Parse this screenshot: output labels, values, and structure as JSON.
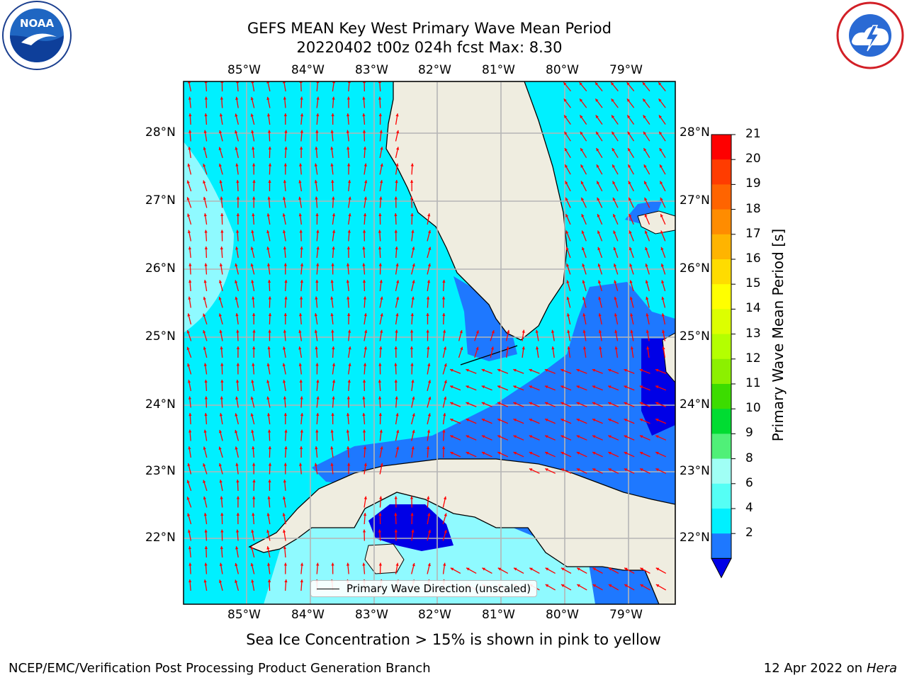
{
  "title": {
    "line1": "GEFS MEAN Key West Primary Wave Mean Period",
    "line2": "20220402 t00z 024h fcst   Max: 8.30"
  },
  "map": {
    "lon_ticks": [
      "85°W",
      "84°W",
      "83°W",
      "82°W",
      "81°W",
      "80°W",
      "79°W"
    ],
    "lat_ticks": [
      "28°N",
      "27°N",
      "26°N",
      "25°N",
      "24°N",
      "23°N",
      "22°N"
    ],
    "legend_label": "Primary Wave Direction (unscaled)",
    "colors": {
      "ocean_light": "#8ffaff",
      "ocean_cyan": "#00f0ff",
      "ocean_blue": "#1e78ff",
      "ocean_deep": "#0000e6",
      "land": "#efede0",
      "arrow": "#ff0000",
      "grid": "#b5b5b5"
    }
  },
  "colorbar": {
    "label": "Primary Wave Mean Period [s]",
    "ticks": [
      "21",
      "20",
      "19",
      "18",
      "17",
      "16",
      "15",
      "14",
      "13",
      "12",
      "11",
      "10",
      "9",
      "8",
      "6",
      "4",
      "2"
    ],
    "colors": [
      "#fe0000",
      "#ff3c00",
      "#ff6400",
      "#ff8c00",
      "#ffb400",
      "#ffdc00",
      "#ffff00",
      "#dcff00",
      "#b4ff00",
      "#8cf000",
      "#3cdc00",
      "#00dc32",
      "#50f078",
      "#a0fff5",
      "#55fff5",
      "#00f0ff",
      "#1e78ff"
    ],
    "extend_color": "#0000e6"
  },
  "notes": {
    "sea_ice": "Sea Ice Concentration > 15% is shown in pink to yellow"
  },
  "footer": {
    "left": "NCEP/EMC/Verification Post Processing Product Generation Branch",
    "right_prefix": "12 Apr 2022 on ",
    "right_host": "Hera"
  },
  "logos": {
    "left": "NOAA",
    "right": "NATIONAL WEATHER SERVICE"
  }
}
